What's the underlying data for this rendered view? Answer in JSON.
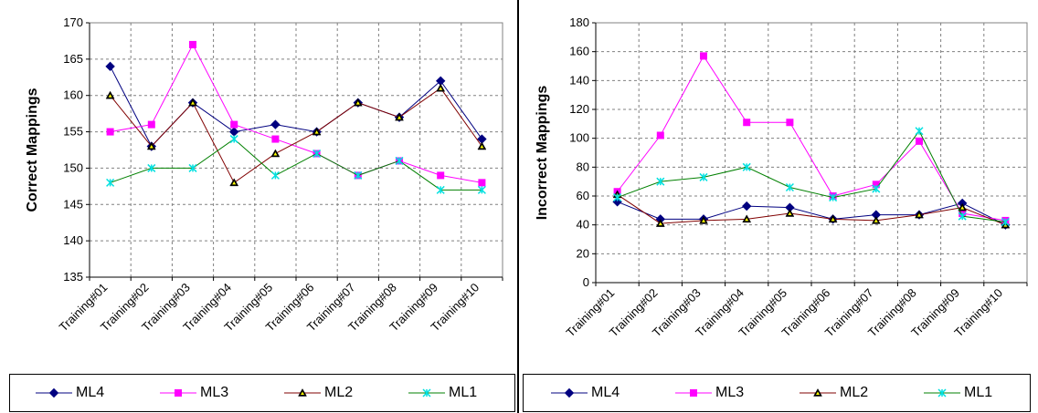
{
  "chart_data": [
    {
      "type": "line",
      "title": "",
      "xlabel": "",
      "ylabel": "Correct Mappings",
      "categories": [
        "Training#01",
        "Training#02",
        "Training#03",
        "Training#04",
        "Training#05",
        "Training#06",
        "Training#07",
        "Training#08",
        "Training#09",
        "Training#10"
      ],
      "ylim": [
        135,
        170
      ],
      "yticks": [
        135,
        140,
        145,
        150,
        155,
        160,
        165,
        170
      ],
      "grid": true,
      "legend_position": "bottom",
      "series": [
        {
          "name": "ML4",
          "color": "#000080",
          "marker": "diamond",
          "values": [
            164,
            153,
            159,
            155,
            156,
            155,
            159,
            157,
            162,
            154
          ]
        },
        {
          "name": "ML3",
          "color": "#ff00ff",
          "marker": "square",
          "values": [
            155,
            156,
            167,
            156,
            154,
            152,
            149,
            151,
            149,
            148
          ]
        },
        {
          "name": "ML2",
          "color": "#800000",
          "marker": "triangle",
          "values": [
            160,
            153,
            159,
            148,
            152,
            155,
            159,
            157,
            161,
            153
          ]
        },
        {
          "name": "ML1",
          "color": "#008000",
          "marker": "star",
          "values": [
            148,
            150,
            150,
            154,
            149,
            152,
            149,
            151,
            147,
            147
          ]
        }
      ]
    },
    {
      "type": "line",
      "title": "",
      "xlabel": "",
      "ylabel": "Incorrect Mappings",
      "categories": [
        "Training#01",
        "Training#02",
        "Training#03",
        "Training#04",
        "Training#05",
        "Training#06",
        "Training#07",
        "Training#08",
        "Training#09",
        "Training#10"
      ],
      "ylim": [
        0,
        180
      ],
      "yticks": [
        0,
        20,
        40,
        60,
        80,
        100,
        120,
        140,
        160,
        180
      ],
      "grid": true,
      "legend_position": "bottom",
      "series": [
        {
          "name": "ML4",
          "color": "#000080",
          "marker": "diamond",
          "values": [
            56,
            44,
            44,
            53,
            52,
            44,
            47,
            47,
            55,
            40
          ]
        },
        {
          "name": "ML3",
          "color": "#ff00ff",
          "marker": "square",
          "values": [
            63,
            102,
            157,
            111,
            111,
            60,
            68,
            98,
            48,
            43
          ]
        },
        {
          "name": "ML2",
          "color": "#800000",
          "marker": "triangle",
          "values": [
            61,
            41,
            43,
            44,
            48,
            44,
            43,
            47,
            52,
            40
          ]
        },
        {
          "name": "ML1",
          "color": "#008000",
          "marker": "star",
          "values": [
            59,
            70,
            73,
            80,
            66,
            59,
            65,
            105,
            46,
            42
          ]
        }
      ]
    }
  ]
}
